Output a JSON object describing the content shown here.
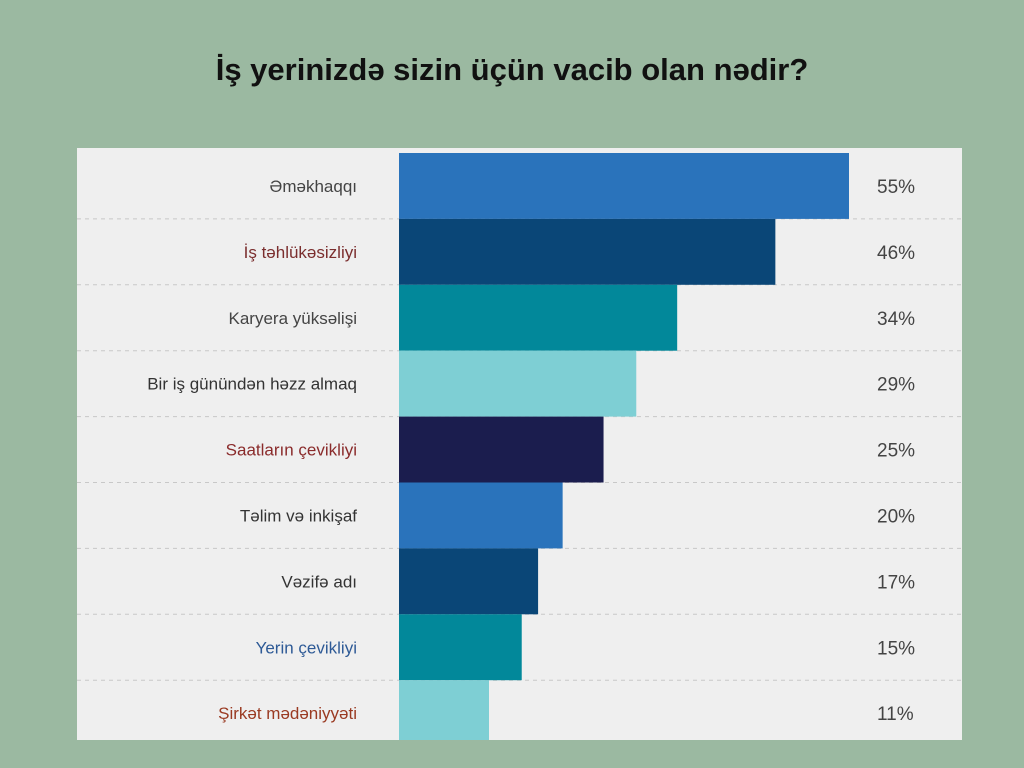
{
  "title": "İş yerinizdə sizin üçün vacib olan nədir?",
  "chart_data": {
    "type": "bar",
    "orientation": "horizontal",
    "title": "İş yerinizdə sizin üçün vacib olan nədir?",
    "categories": [
      "Əməkhaqqı",
      "İş təhlükəsizliyi",
      "Karyera yüksəlişi",
      "Bir iş günündən həzz almaq",
      "Saatların çevikliyi",
      "Təlim və inkişaf",
      "Vəzifə adı",
      "Yerin çevikliyi",
      "Şirkət mədəniyyəti"
    ],
    "values": [
      55,
      46,
      34,
      29,
      25,
      20,
      17,
      15,
      11
    ],
    "value_labels": [
      "55%",
      "46%",
      "34%",
      "29%",
      "25%",
      "20%",
      "17%",
      "15%",
      "11%"
    ],
    "unit": "%",
    "xlim": [
      0,
      55
    ],
    "grid": "horizontal dashed separators",
    "legend": "none",
    "bar_colors": [
      "#2a73bb",
      "#0a4677",
      "#02889a",
      "#7ecfd4",
      "#1b1d4e",
      "#2a73bb",
      "#0a4677",
      "#02889a",
      "#7ecfd4"
    ],
    "label_colors": [
      "#444444",
      "#7b2e2e",
      "#444444",
      "#333333",
      "#8a2b2b",
      "#333333",
      "#333333",
      "#2e5a96",
      "#9a3a22"
    ]
  }
}
